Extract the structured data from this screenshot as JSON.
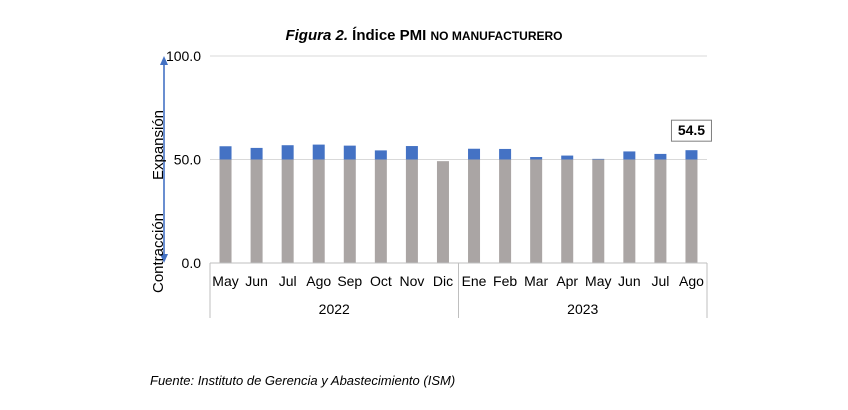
{
  "figure": {
    "label": "Figura 2.",
    "title_word": "Índice PMI",
    "title_rest": "no manufacturero"
  },
  "source": "Fuente: Instituto de Gerencia y Abastecimiento (ISM)",
  "chart_data": {
    "type": "bar",
    "title": "Figura 2. Índice PMI no manufacturero",
    "categories": [
      "May",
      "Jun",
      "Jul",
      "Ago",
      "Sep",
      "Oct",
      "Nov",
      "Dic",
      "Ene",
      "Feb",
      "Mar",
      "Apr",
      "May",
      "Jun",
      "Jul",
      "Ago"
    ],
    "groups": [
      {
        "label": "2022",
        "start": 0,
        "end": 7
      },
      {
        "label": "2023",
        "start": 8,
        "end": 15
      }
    ],
    "values": [
      56.4,
      55.6,
      56.9,
      57.2,
      56.7,
      54.4,
      56.5,
      49.2,
      55.2,
      55.1,
      51.2,
      51.9,
      50.3,
      53.9,
      52.7,
      54.5
    ],
    "baseline": 50,
    "ylim": [
      0,
      100
    ],
    "yticks": [
      "0.0",
      "50.0",
      "100.0"
    ],
    "ytick_values": [
      0,
      50,
      100
    ],
    "axis_annotations": {
      "upper": "Expansión",
      "lower": "Contracción"
    },
    "data_label": {
      "index": 15,
      "text": "54.5"
    },
    "grid": true,
    "colors": {
      "base": "#aaa5a4",
      "above": "#4472c4",
      "axis_arrow": "#4472c4",
      "grid": "#d9d9d9"
    }
  }
}
